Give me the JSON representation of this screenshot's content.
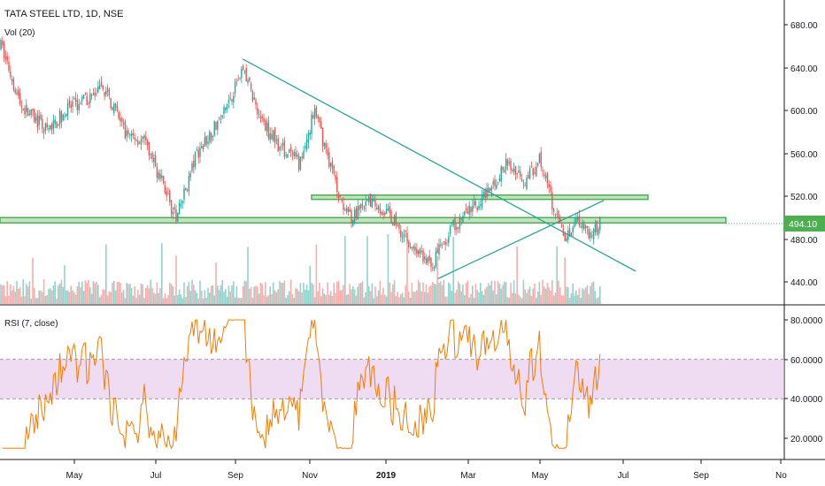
{
  "header": {
    "title": "TATA STEEL LTD, 1D, NSE",
    "volume_label": "Vol (20)",
    "rsi_label": "RSI (7, close)"
  },
  "price_axis": {
    "ticks": [
      "680.00",
      "640.00",
      "600.00",
      "560.00",
      "520.00",
      "480.00",
      "440.00"
    ],
    "current_price": "494.10"
  },
  "rsi_axis": {
    "ticks": [
      "80.0000",
      "60.0000",
      "40.0000",
      "20.0000"
    ]
  },
  "time_axis": {
    "ticks": [
      "May",
      "Jul",
      "Sep",
      "Nov",
      "2019",
      "Mar",
      "May",
      "Jul",
      "Sep",
      "No"
    ]
  },
  "colors": {
    "up": "#26a69a",
    "down": "#ef5350",
    "trendline": "#26a69a",
    "zone_fill": "#4caf50",
    "rsi_line": "#f57c00",
    "rsi_band": "#e1bee7",
    "price_badge": "#4caf50"
  },
  "chart_data": [
    {
      "type": "candlestick",
      "title": "TATA STEEL LTD, 1D, NSE",
      "x_range": [
        "2018-03",
        "2019-11"
      ],
      "ylim": [
        430,
        690
      ],
      "current_price": 494.1,
      "price_path_approx": [
        {
          "date": "2018-03-05",
          "close": 660
        },
        {
          "date": "2018-03-20",
          "close": 605
        },
        {
          "date": "2018-04-10",
          "close": 580
        },
        {
          "date": "2018-04-25",
          "close": 600
        },
        {
          "date": "2018-05-10",
          "close": 610
        },
        {
          "date": "2018-05-25",
          "close": 620
        },
        {
          "date": "2018-06-10",
          "close": 580
        },
        {
          "date": "2018-06-25",
          "close": 570
        },
        {
          "date": "2018-07-10",
          "close": 530
        },
        {
          "date": "2018-07-20",
          "close": 498
        },
        {
          "date": "2018-08-05",
          "close": 560
        },
        {
          "date": "2018-08-25",
          "close": 595
        },
        {
          "date": "2018-09-10",
          "close": 640
        },
        {
          "date": "2018-09-25",
          "close": 590
        },
        {
          "date": "2018-10-10",
          "close": 565
        },
        {
          "date": "2018-10-25",
          "close": 550
        },
        {
          "date": "2018-11-05",
          "close": 600
        },
        {
          "date": "2018-11-15",
          "close": 560
        },
        {
          "date": "2018-11-25",
          "close": 520
        },
        {
          "date": "2018-12-05",
          "close": 500
        },
        {
          "date": "2018-12-20",
          "close": 515
        },
        {
          "date": "2019-01-05",
          "close": 500
        },
        {
          "date": "2019-01-20",
          "close": 475
        },
        {
          "date": "2019-02-05",
          "close": 455
        },
        {
          "date": "2019-02-20",
          "close": 490
        },
        {
          "date": "2019-03-05",
          "close": 505
        },
        {
          "date": "2019-03-20",
          "close": 520
        },
        {
          "date": "2019-04-05",
          "close": 550
        },
        {
          "date": "2019-04-20",
          "close": 535
        },
        {
          "date": "2019-05-01",
          "close": 555
        },
        {
          "date": "2019-05-10",
          "close": 515
        },
        {
          "date": "2019-05-20",
          "close": 480
        },
        {
          "date": "2019-05-30",
          "close": 500
        },
        {
          "date": "2019-06-10",
          "close": 485
        },
        {
          "date": "2019-06-18",
          "close": 494.1
        }
      ],
      "horizontal_zones": [
        {
          "from": 495,
          "to": 500
        },
        {
          "from": 517,
          "to": 521
        }
      ],
      "trendlines": [
        {
          "from": {
            "date": "2018-09-10",
            "value": 648
          },
          "to": {
            "date": "2019-07-15",
            "value": 450
          }
        },
        {
          "from": {
            "date": "2019-02-10",
            "value": 443
          },
          "to": {
            "date": "2019-06-20",
            "value": 516
          }
        }
      ]
    },
    {
      "type": "bar",
      "title": "Vol (20)",
      "note": "volume histogram coloured by candle direction"
    },
    {
      "type": "line",
      "title": "RSI (7, close)",
      "ylim": [
        10,
        85
      ],
      "bands": [
        40,
        60
      ]
    }
  ]
}
